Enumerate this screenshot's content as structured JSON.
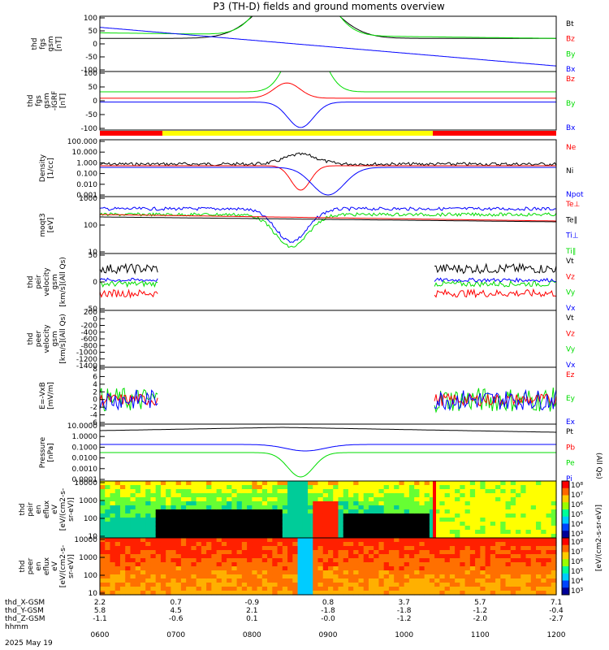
{
  "title": "P3 (TH-D) fields and ground moments overview",
  "date_label": "2025 May 19",
  "colors": {
    "black": "#000000",
    "red": "#ff0000",
    "green": "#00dd00",
    "blue": "#0000ff",
    "yellow": "#ffff00"
  },
  "time_ticks": [
    "0600",
    "0700",
    "0800",
    "0900",
    "1000",
    "1100",
    "1200"
  ],
  "ephemeris": [
    {
      "label": "thd_X-GSM",
      "values": [
        "2.2",
        "0.7",
        "-0.9",
        "0.8",
        "3.7",
        "5.7",
        "7.1"
      ]
    },
    {
      "label": "thd_Y-GSM",
      "values": [
        "5.8",
        "4.5",
        "2.1",
        "-1.8",
        "-1.8",
        "-1.2",
        "-0.4"
      ]
    },
    {
      "label": "thd_Z-GSM",
      "values": [
        "-1.1",
        "-0.6",
        "0.1",
        "-0.0",
        "-1.2",
        "-2.0",
        "-2.7"
      ]
    },
    {
      "label": "hhmm",
      "values": []
    }
  ],
  "chart_data": [
    {
      "id": "fgs",
      "type": "line",
      "ylabel": [
        "thd",
        "fgs",
        "gsm",
        "[nT]"
      ],
      "ylim": [
        -100,
        100
      ],
      "yticks": [
        "100",
        "50",
        "0",
        "-50",
        "-100"
      ],
      "series": [
        {
          "name": "Bt",
          "color": "black"
        },
        {
          "name": "Bz",
          "color": "red"
        },
        {
          "name": "By",
          "color": "green"
        },
        {
          "name": "Bx",
          "color": "blue"
        }
      ]
    },
    {
      "id": "fgs_dip",
      "type": "line",
      "ylabel": [
        "thd",
        "fgs",
        "gsm",
        "-IGRF",
        "[nT]"
      ],
      "ylim": [
        -130,
        100
      ],
      "yticks": [
        "100",
        "50",
        "0",
        "-50",
        "-100"
      ],
      "series": [
        {
          "name": "Bz",
          "color": "red"
        },
        {
          "name": "By",
          "color": "green"
        },
        {
          "name": "Bx",
          "color": "blue"
        }
      ]
    },
    {
      "id": "density",
      "type": "line",
      "ylabel": [
        "Density",
        "[1/cc]"
      ],
      "log": true,
      "yticks": [
        "100.000",
        "10.000",
        "1.000",
        "0.100",
        "0.010",
        "0.001"
      ],
      "series": [
        {
          "name": "Ne",
          "color": "red"
        },
        {
          "name": "Ni",
          "color": "black"
        },
        {
          "name": "Npot",
          "color": "blue"
        }
      ]
    },
    {
      "id": "temp",
      "type": "line",
      "ylabel": [
        "moqt3",
        "[eV]"
      ],
      "log": true,
      "yticks": [
        "1000",
        "100",
        "10"
      ],
      "series": [
        {
          "name": "Te⊥",
          "color": "red"
        },
        {
          "name": "Te∥",
          "color": "black"
        },
        {
          "name": "Ti⊥",
          "color": "blue"
        },
        {
          "name": "Ti∥",
          "color": "green"
        }
      ]
    },
    {
      "id": "vi",
      "type": "line",
      "ylabel": [
        "thd",
        "peir",
        "velocity",
        "gsm",
        "[km/s](All Qs)"
      ],
      "ylim": [
        -75,
        75
      ],
      "yticks": [
        "50",
        "0",
        "-50"
      ],
      "series": [
        {
          "name": "Vt",
          "color": "black"
        },
        {
          "name": "Vz",
          "color": "red"
        },
        {
          "name": "Vy",
          "color": "green"
        },
        {
          "name": "Vx",
          "color": "blue"
        }
      ]
    },
    {
      "id": "ve",
      "type": "line",
      "ylabel": [
        "thd",
        "peer",
        "velocity",
        "gsm",
        "[km/s](All Qs)"
      ],
      "ylim": [
        -1500,
        300
      ],
      "yticks": [
        "200",
        "0",
        "-200",
        "-400",
        "-600",
        "-800",
        "-1000",
        "-1200",
        "-1400"
      ],
      "series": [
        {
          "name": "Vt",
          "color": "black"
        },
        {
          "name": "Vz",
          "color": "red"
        },
        {
          "name": "Vy",
          "color": "green"
        },
        {
          "name": "Vx",
          "color": "blue"
        }
      ]
    },
    {
      "id": "exb",
      "type": "line",
      "ylabel": [
        "E=-VxB",
        "[mV/m]"
      ],
      "ylim": [
        -6,
        8
      ],
      "yticks": [
        "8",
        "6",
        "4",
        "2",
        "0",
        "-2",
        "-4",
        "-6"
      ],
      "series": [
        {
          "name": "Ez",
          "color": "red"
        },
        {
          "name": "Ey",
          "color": "green"
        },
        {
          "name": "Ex",
          "color": "blue"
        }
      ]
    },
    {
      "id": "pressure",
      "type": "line",
      "ylabel": [
        "Pressure",
        "[nPa]"
      ],
      "log": true,
      "yticks": [
        "10.0000",
        "1.0000",
        "0.1000",
        "0.0100",
        "0.0010",
        "0.0001"
      ],
      "series": [
        {
          "name": "Pt",
          "color": "black"
        },
        {
          "name": "Pb",
          "color": "red"
        },
        {
          "name": "Pe",
          "color": "green"
        },
        {
          "name": "Pi",
          "color": "blue"
        }
      ],
      "side_note": "(All Qs)"
    },
    {
      "id": "ion_spec",
      "type": "heatmap",
      "ylabel": [
        "thd",
        "peir",
        "en",
        "eflux",
        "eV",
        "[eV/(cm2-s-",
        "sr-eV)]"
      ],
      "yticks": [
        "10000",
        "1000",
        "100",
        "10"
      ]
    },
    {
      "id": "elec_spec",
      "type": "heatmap",
      "ylabel": [
        "thd",
        "peer",
        "en",
        "eflux",
        "eV",
        "[eV/(cm2-s-",
        "sr-eV)]"
      ],
      "yticks": [
        "10000",
        "1000",
        "100",
        "10"
      ]
    }
  ],
  "colorbar": {
    "ticks": [
      "10⁸",
      "10⁷",
      "10⁶",
      "10⁵",
      "10⁴",
      "10³"
    ],
    "label": "[eV/(cm2-s-sr-eV)]"
  }
}
